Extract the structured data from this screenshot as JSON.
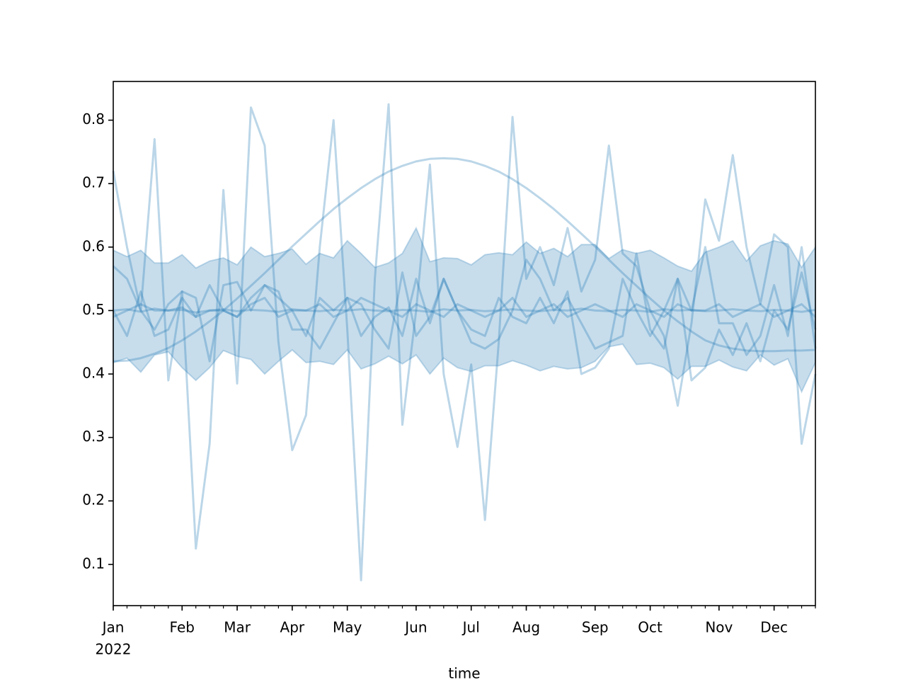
{
  "chart_data": {
    "type": "line",
    "xlabel": "time",
    "x_year_label": "2022",
    "xlim": [
      0,
      51
    ],
    "xticks": [
      {
        "value": 0,
        "label": "Jan"
      },
      {
        "value": 5,
        "label": "Feb"
      },
      {
        "value": 9,
        "label": "Mar"
      },
      {
        "value": 13,
        "label": "Apr"
      },
      {
        "value": 17,
        "label": "May"
      },
      {
        "value": 22,
        "label": "Jun"
      },
      {
        "value": 26,
        "label": "Jul"
      },
      {
        "value": 30,
        "label": "Aug"
      },
      {
        "value": 35,
        "label": "Sep"
      },
      {
        "value": 39,
        "label": "Oct"
      },
      {
        "value": 44,
        "label": "Nov"
      },
      {
        "value": 48,
        "label": "Dec"
      }
    ],
    "ylim": [
      0.035,
      0.861
    ],
    "yticks": [
      0.1,
      0.2,
      0.3,
      0.4,
      0.5,
      0.6,
      0.7,
      0.8
    ],
    "band": {
      "color": "#1f77b4",
      "alpha": 0.25,
      "upper": [
        0.595,
        0.585,
        0.595,
        0.575,
        0.575,
        0.588,
        0.567,
        0.578,
        0.583,
        0.572,
        0.6,
        0.585,
        0.59,
        0.597,
        0.573,
        0.59,
        0.583,
        0.61,
        0.59,
        0.568,
        0.575,
        0.59,
        0.63,
        0.577,
        0.583,
        0.582,
        0.572,
        0.588,
        0.591,
        0.588,
        0.608,
        0.59,
        0.598,
        0.585,
        0.604,
        0.604,
        0.582,
        0.596,
        0.59,
        0.595,
        0.583,
        0.57,
        0.562,
        0.592,
        0.6,
        0.61,
        0.578,
        0.602,
        0.61,
        0.605,
        0.568,
        0.6
      ],
      "lower": [
        0.418,
        0.425,
        0.403,
        0.43,
        0.435,
        0.41,
        0.39,
        0.41,
        0.437,
        0.428,
        0.423,
        0.4,
        0.42,
        0.438,
        0.418,
        0.42,
        0.415,
        0.438,
        0.408,
        0.416,
        0.428,
        0.416,
        0.43,
        0.4,
        0.425,
        0.41,
        0.404,
        0.413,
        0.413,
        0.421,
        0.414,
        0.405,
        0.412,
        0.408,
        0.41,
        0.42,
        0.443,
        0.447,
        0.415,
        0.417,
        0.41,
        0.392,
        0.412,
        0.412,
        0.422,
        0.411,
        0.405,
        0.43,
        0.414,
        0.424,
        0.372,
        0.418
      ]
    },
    "series": [
      {
        "color": "#1f77b4",
        "alpha": 0.3,
        "values": [
          0.72,
          0.6,
          0.5,
          0.77,
          0.39,
          0.53,
          0.125,
          0.29,
          0.69,
          0.385,
          0.82,
          0.76,
          0.45,
          0.28,
          0.335,
          0.6,
          0.8,
          0.47,
          0.075,
          0.55,
          0.825,
          0.32,
          0.5,
          0.73,
          0.4,
          0.285,
          0.415,
          0.17,
          0.45,
          0.805,
          0.55,
          0.6,
          0.54,
          0.63,
          0.53,
          0.58,
          0.76,
          0.59,
          0.57,
          0.5,
          0.46,
          0.35,
          0.48,
          0.675,
          0.61,
          0.745,
          0.6,
          0.51,
          0.62,
          0.6,
          0.29,
          0.4
        ]
      },
      {
        "color": "#1f77b4",
        "alpha": 0.3,
        "values": [
          0.42,
          0.421,
          0.425,
          0.432,
          0.441,
          0.453,
          0.467,
          0.483,
          0.5,
          0.519,
          0.539,
          0.559,
          0.58,
          0.601,
          0.621,
          0.641,
          0.66,
          0.677,
          0.693,
          0.707,
          0.719,
          0.728,
          0.735,
          0.739,
          0.74,
          0.739,
          0.735,
          0.728,
          0.719,
          0.707,
          0.693,
          0.677,
          0.66,
          0.641,
          0.621,
          0.601,
          0.58,
          0.559,
          0.539,
          0.519,
          0.5,
          0.483,
          0.467,
          0.453,
          0.445,
          0.44,
          0.437,
          0.436,
          0.436,
          0.437,
          0.437,
          0.438
        ]
      },
      {
        "color": "#1f77b4",
        "alpha": 0.3,
        "values": [
          0.57,
          0.55,
          0.5,
          0.47,
          0.51,
          0.53,
          0.52,
          0.42,
          0.54,
          0.545,
          0.5,
          0.54,
          0.53,
          0.47,
          0.47,
          0.44,
          0.48,
          0.52,
          0.46,
          0.49,
          0.505,
          0.46,
          0.55,
          0.48,
          0.55,
          0.5,
          0.45,
          0.44,
          0.455,
          0.5,
          0.58,
          0.55,
          0.5,
          0.52,
          0.48,
          0.44,
          0.45,
          0.46,
          0.59,
          0.47,
          0.44,
          0.55,
          0.5,
          0.6,
          0.48,
          0.48,
          0.43,
          0.46,
          0.54,
          0.46,
          0.6,
          0.44
        ]
      },
      {
        "color": "#1f77b4",
        "alpha": 0.3,
        "values": [
          0.5,
          0.46,
          0.53,
          0.46,
          0.47,
          0.52,
          0.49,
          0.54,
          0.5,
          0.49,
          0.52,
          0.54,
          0.52,
          0.5,
          0.46,
          0.52,
          0.5,
          0.52,
          0.51,
          0.47,
          0.44,
          0.56,
          0.46,
          0.49,
          0.55,
          0.5,
          0.47,
          0.46,
          0.52,
          0.49,
          0.48,
          0.52,
          0.48,
          0.53,
          0.4,
          0.41,
          0.44,
          0.55,
          0.5,
          0.46,
          0.5,
          0.55,
          0.39,
          0.41,
          0.47,
          0.43,
          0.48,
          0.42,
          0.5,
          0.47,
          0.56,
          0.47
        ]
      },
      {
        "color": "#1f77b4",
        "alpha": 0.3,
        "values": [
          0.49,
          0.5,
          0.51,
          0.5,
          0.5,
          0.505,
          0.49,
          0.5,
          0.5,
          0.49,
          0.51,
          0.52,
          0.49,
          0.5,
          0.5,
          0.51,
          0.49,
          0.5,
          0.52,
          0.51,
          0.5,
          0.49,
          0.51,
          0.5,
          0.49,
          0.51,
          0.5,
          0.49,
          0.5,
          0.52,
          0.49,
          0.5,
          0.51,
          0.49,
          0.5,
          0.51,
          0.5,
          0.49,
          0.51,
          0.5,
          0.49,
          0.51,
          0.5,
          0.5,
          0.51,
          0.49,
          0.5,
          0.51,
          0.49,
          0.5,
          0.51,
          0.49
        ]
      },
      {
        "color": "#1f77b4",
        "alpha": 0.3,
        "values": [
          0.5,
          0.502,
          0.498,
          0.503,
          0.5,
          0.501,
          0.497,
          0.5,
          0.502,
          0.499,
          0.501,
          0.5,
          0.498,
          0.502,
          0.5,
          0.499,
          0.501,
          0.5,
          0.502,
          0.5,
          0.499,
          0.501,
          0.5,
          0.498,
          0.502,
          0.5,
          0.501,
          0.499,
          0.5,
          0.502,
          0.5,
          0.499,
          0.501,
          0.5,
          0.503,
          0.5,
          0.499,
          0.501,
          0.5,
          0.498,
          0.502,
          0.5,
          0.501,
          0.499,
          0.5,
          0.502,
          0.5,
          0.499,
          0.501,
          0.5,
          0.498,
          0.501
        ]
      }
    ]
  }
}
